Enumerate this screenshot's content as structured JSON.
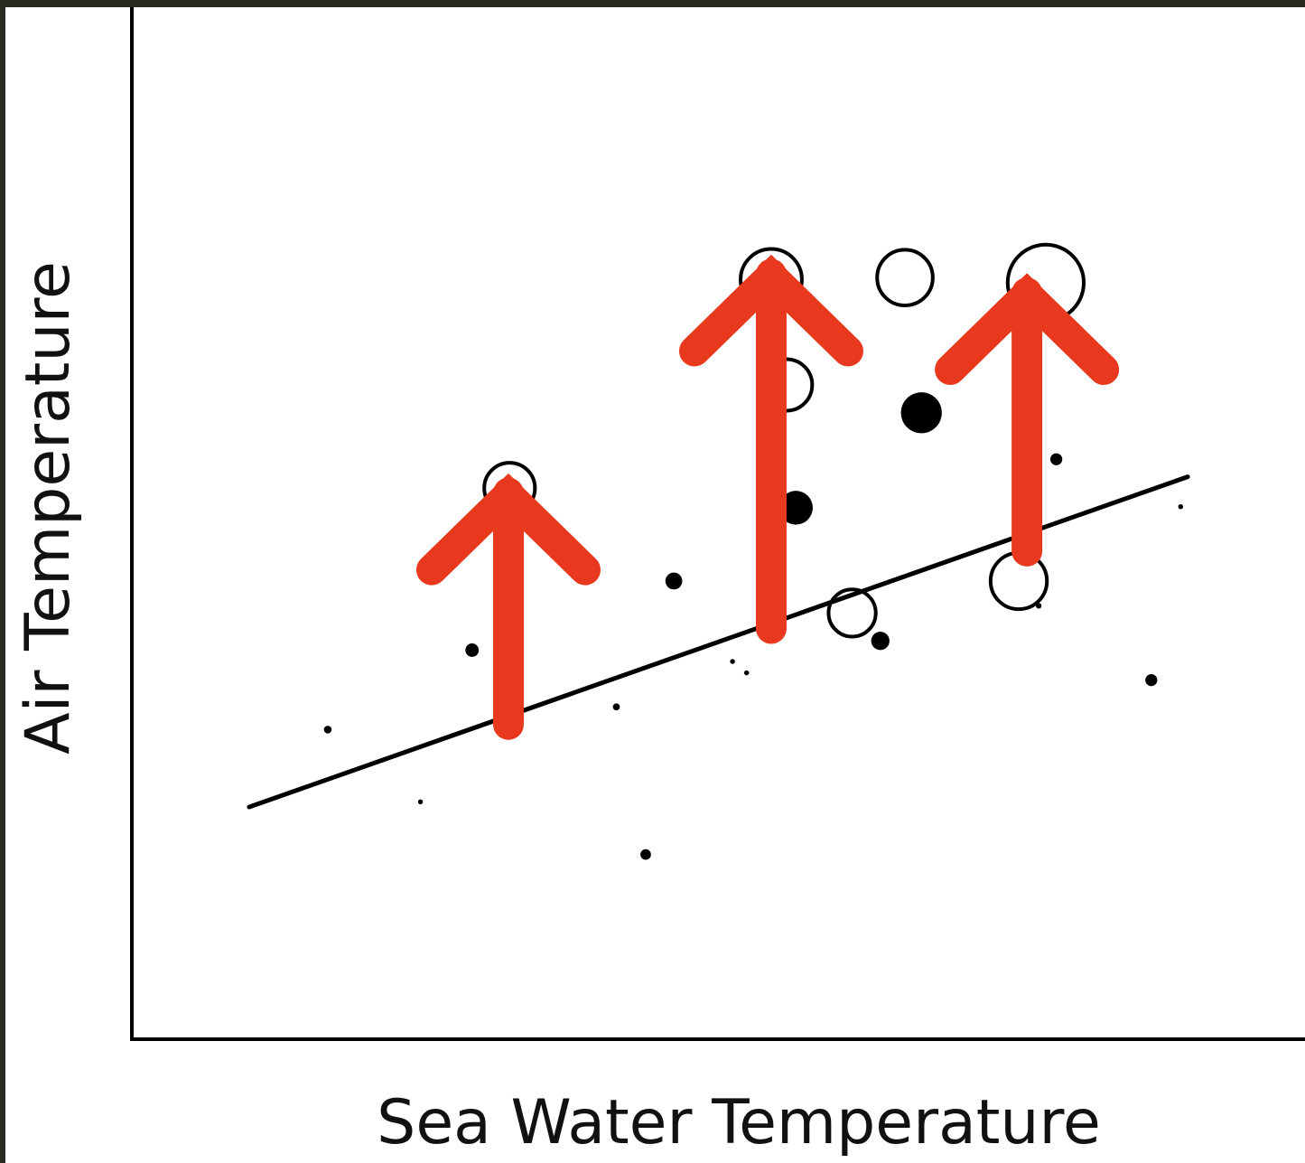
{
  "chart_data": {
    "type": "scatter",
    "title": "",
    "xlabel": "Sea Water Temperature",
    "ylabel": "Air Temperature",
    "xlim": [
      0,
      100
    ],
    "ylim": [
      0,
      100
    ],
    "grid": false,
    "ticks": false,
    "colors": {
      "mark": "#000000",
      "arrow": "#e8391e",
      "frame": "#2b2a20",
      "background": "#ffffff"
    },
    "trendline": {
      "x": [
        10,
        90
      ],
      "y": [
        22.5,
        54.5
      ]
    },
    "series": [
      {
        "style": "filled",
        "points": [
          {
            "x": 16.7,
            "y": 30.0,
            "size": 11
          },
          {
            "x": 24.6,
            "y": 23.0,
            "size": 7
          },
          {
            "x": 29.0,
            "y": 37.7,
            "size": 19
          },
          {
            "x": 41.3,
            "y": 32.2,
            "size": 10
          },
          {
            "x": 43.8,
            "y": 17.9,
            "size": 15
          },
          {
            "x": 46.2,
            "y": 44.4,
            "size": 24
          },
          {
            "x": 51.2,
            "y": 36.6,
            "size": 7
          },
          {
            "x": 52.4,
            "y": 35.5,
            "size": 7
          },
          {
            "x": 56.6,
            "y": 51.5,
            "size": 48
          },
          {
            "x": 63.8,
            "y": 38.6,
            "size": 26
          },
          {
            "x": 67.3,
            "y": 60.7,
            "size": 58
          },
          {
            "x": 78.8,
            "y": 56.2,
            "size": 17
          },
          {
            "x": 77.3,
            "y": 42.0,
            "size": 8
          },
          {
            "x": 86.9,
            "y": 34.8,
            "size": 17
          },
          {
            "x": 89.4,
            "y": 51.6,
            "size": 7
          }
        ]
      },
      {
        "style": "open",
        "points": [
          {
            "x": 32.2,
            "y": 53.4,
            "size": 72
          },
          {
            "x": 54.5,
            "y": 73.6,
            "size": 87
          },
          {
            "x": 55.8,
            "y": 63.4,
            "size": 73
          },
          {
            "x": 65.9,
            "y": 73.8,
            "size": 79
          },
          {
            "x": 61.4,
            "y": 41.3,
            "size": 67
          },
          {
            "x": 77.9,
            "y": 73.3,
            "size": 108
          },
          {
            "x": 75.6,
            "y": 44.4,
            "size": 80
          }
        ]
      }
    ],
    "arrows": [
      {
        "x": 32.1,
        "y_from": 30.5,
        "y_to": 53.8
      },
      {
        "x": 54.5,
        "y_from": 39.8,
        "y_to": 75.0
      },
      {
        "x": 76.3,
        "y_from": 47.3,
        "y_to": 73.2
      }
    ]
  }
}
